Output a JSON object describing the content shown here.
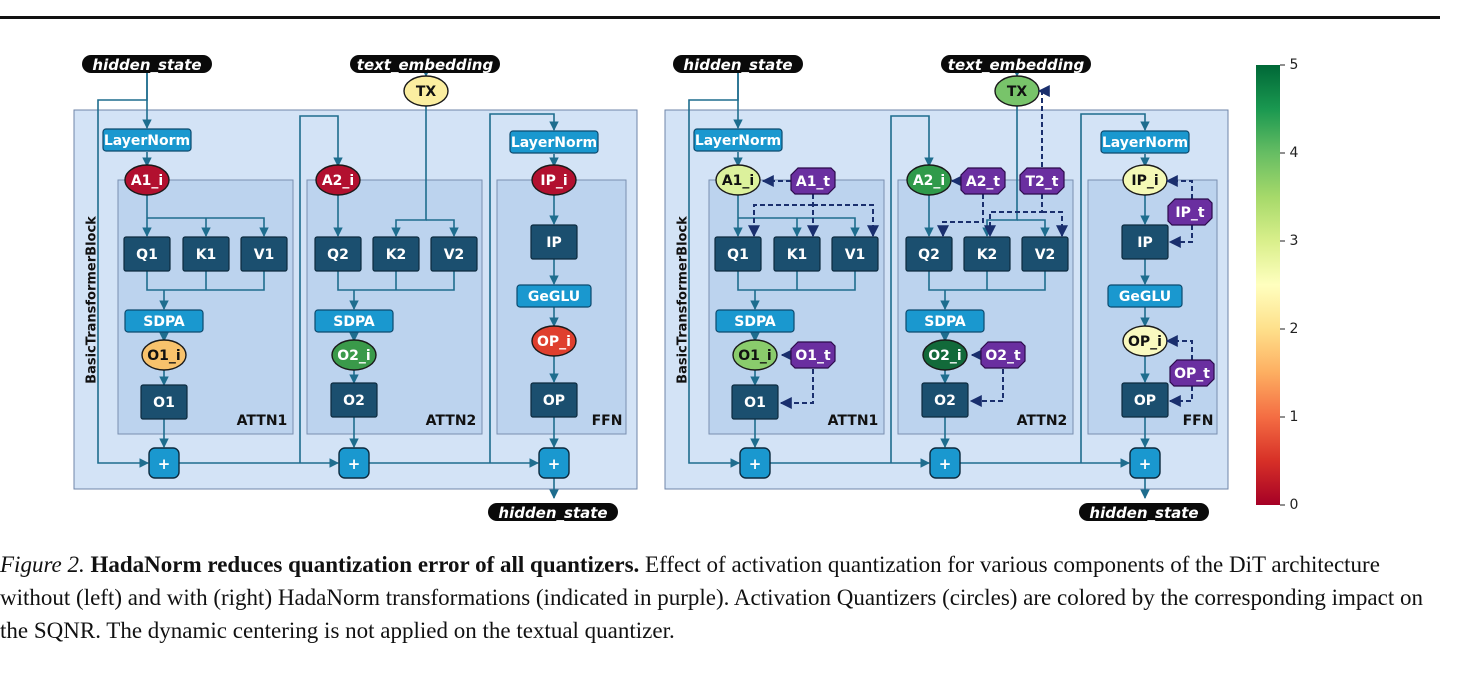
{
  "figure": {
    "labels": {
      "hidden_in": "hidden_state",
      "text_embedding": "text_embedding",
      "hidden_out": "hidden_state",
      "layernorm": "LayerNorm",
      "block": "BasicTransformerBlock",
      "attn1": "ATTN1",
      "attn2": "ATTN2",
      "ffn": "FFN",
      "q1": "Q1",
      "k1": "K1",
      "v1": "V1",
      "q2": "Q2",
      "k2": "K2",
      "v2": "V2",
      "sdpa": "SDPA",
      "o1": "O1",
      "o2": "O2",
      "ip": "IP",
      "op": "OP",
      "geglu": "GeGLU",
      "plus": "+"
    },
    "left": {
      "quantizers": {
        "TX": {
          "label": "TX",
          "color": "#fbeea0"
        },
        "A1_i": {
          "label": "A1_i",
          "color": "#b2102f"
        },
        "A2_i": {
          "label": "A2_i",
          "color": "#b2102f"
        },
        "IP_i": {
          "label": "IP_i",
          "color": "#b2102f"
        },
        "O1_i": {
          "label": "O1_i",
          "color": "#f8c26c"
        },
        "O2_i": {
          "label": "O2_i",
          "color": "#3a9a4a"
        },
        "OP_i": {
          "label": "OP_i",
          "color": "#df3f2e"
        }
      }
    },
    "right": {
      "quantizers": {
        "TX": {
          "label": "TX",
          "color": "#78c46a"
        },
        "A1_i": {
          "label": "A1_i",
          "color": "#dcf19c"
        },
        "A2_i": {
          "label": "A2_i",
          "color": "#2f9a4a"
        },
        "IP_i": {
          "label": "IP_i",
          "color": "#f4f9b6"
        },
        "O1_i": {
          "label": "O1_i",
          "color": "#8acc6c"
        },
        "O2_i": {
          "label": "O2_i",
          "color": "#126a3a"
        },
        "OP_i": {
          "label": "OP_i",
          "color": "#f9f9c0"
        }
      },
      "transforms": {
        "A1_t": "A1_t",
        "A2_t": "A2_t",
        "T2_t": "T2_t",
        "IP_t": "IP_t",
        "O1_t": "O1_t",
        "O2_t": "O2_t",
        "OP_t": "OP_t"
      }
    },
    "colorbar": {
      "ticks": [
        "0",
        "1",
        "2",
        "3",
        "4",
        "5"
      ],
      "colors": [
        "#a50026",
        "#d73027",
        "#f46d43",
        "#fdae61",
        "#fee08b",
        "#ffffbf",
        "#d9ef8b",
        "#a6d96a",
        "#66bd63",
        "#1a9850",
        "#006837"
      ]
    },
    "colors": {
      "panel_bg": "#d3e3f6",
      "inner_bg": "#bcd3ee",
      "module_box": "#1b4f6f",
      "light_box": "#1a98cf",
      "line": "#1e6d8e",
      "transform": "#6a2fa0",
      "dashed": "#1a2f6e"
    }
  },
  "caption": {
    "label": "Figure 2.",
    "title": "HadaNorm reduces quantization error of all quantizers.",
    "text": "Effect of activation quantization for various components of the DiT architecture without (left) and with (right) HadaNorm transformations (indicated in purple). Activation Quantizers (circles) are colored by the corresponding impact on the SQNR. The dynamic centering is not applied on the textual quantizer."
  }
}
